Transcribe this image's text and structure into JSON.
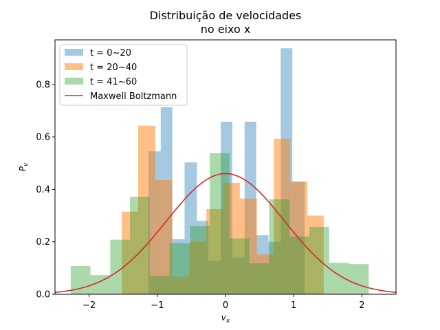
{
  "chart_data": {
    "type": "bar",
    "title_lines": [
      "Distribuição de velocidades",
      "no eixo x"
    ],
    "xlabel": "v",
    "xlabel_sub": "x",
    "ylabel": "P",
    "ylabel_sub": "v",
    "xlim": [
      -2.5,
      2.5
    ],
    "ylim": [
      0,
      0.97
    ],
    "xticks": [
      -2,
      -1,
      0,
      1,
      2
    ],
    "xtick_labels": [
      "−2",
      "−1",
      "0",
      "1",
      "2"
    ],
    "yticks": [
      0.0,
      0.2,
      0.4,
      0.6,
      0.8
    ],
    "ytick_labels": [
      "0.0",
      "0.2",
      "0.4",
      "0.6",
      "0.8"
    ],
    "grid": false,
    "legend": "top-left",
    "series": [
      {
        "name": "t = 0~20",
        "kind": "hist",
        "color": "#1f77b4",
        "bin_edges": [
          -1.13,
          -0.95,
          -0.78,
          -0.6,
          -0.42,
          -0.25,
          -0.07,
          0.1,
          0.28,
          0.45,
          0.63,
          0.81,
          0.98,
          1.16
        ],
        "values": [
          0.545,
          0.713,
          0.21,
          0.503,
          0.28,
          0.128,
          0.658,
          0.14,
          0.658,
          0.225,
          0.2,
          0.938,
          0.428
        ]
      },
      {
        "name": "t = 20~40",
        "kind": "hist",
        "color": "#ff7f0e",
        "bin_edges": [
          -1.52,
          -1.28,
          -1.03,
          -0.78,
          -0.53,
          -0.28,
          -0.04,
          0.21,
          0.46,
          0.71,
          0.95,
          1.2,
          1.44
        ],
        "values": [
          0.315,
          0.643,
          0.435,
          0.067,
          0.2,
          0.325,
          0.425,
          0.365,
          0.152,
          0.593,
          0.43,
          0.3
        ]
      },
      {
        "name": "t = 41~60",
        "kind": "hist",
        "color": "#2ca02c",
        "bin_edges": [
          -2.27,
          -1.98,
          -1.69,
          -1.4,
          -1.11,
          -0.82,
          -0.52,
          -0.23,
          0.06,
          0.35,
          0.64,
          0.94,
          1.23,
          1.52,
          1.81,
          2.1
        ],
        "values": [
          0.108,
          0.073,
          0.208,
          0.372,
          0.07,
          0.195,
          0.26,
          0.538,
          0.213,
          0.118,
          0.362,
          0.22,
          0.257,
          0.12,
          0.115
        ]
      },
      {
        "name": "Maxwell Boltzmann",
        "kind": "line",
        "color": "#d62728",
        "peak": 0.46,
        "sigma": 0.867
      }
    ]
  }
}
